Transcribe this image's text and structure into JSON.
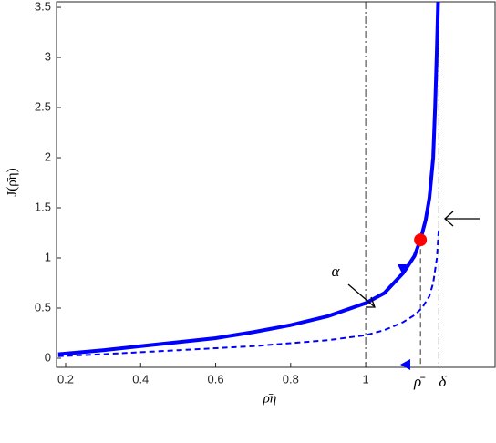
{
  "chart_data": {
    "type": "line",
    "xlabel": "ρ̄η",
    "ylabel": "J(ρ̄η)",
    "xlim": [
      0.1757,
      1.345
    ],
    "ylim": [
      -0.091,
      3.555
    ],
    "xticks": [
      0.2,
      0.4,
      0.6,
      0.8,
      1
    ],
    "yticks": [
      0,
      0.5,
      1,
      1.5,
      2,
      2.5,
      3,
      3.5
    ],
    "series": [
      {
        "color": "#0000ff",
        "style": "solid",
        "x": [
          0.18,
          0.3,
          0.4,
          0.5,
          0.6,
          0.7,
          0.8,
          0.9,
          1.0,
          1.05,
          1.1,
          1.13,
          1.146,
          1.16,
          1.17,
          1.18,
          1.185,
          1.19,
          1.193
        ],
        "values": [
          0.04,
          0.08,
          0.12,
          0.16,
          0.2,
          0.26,
          0.33,
          0.42,
          0.55,
          0.65,
          0.85,
          1.02,
          1.18,
          1.38,
          1.6,
          2.0,
          2.5,
          3.1,
          3.555
        ]
      },
      {
        "color": "#0000ff",
        "style": "dashed",
        "x": [
          0.18,
          0.3,
          0.4,
          0.5,
          0.6,
          0.7,
          0.8,
          0.9,
          1.0,
          1.05,
          1.1,
          1.13,
          1.15,
          1.17,
          1.18,
          1.19,
          1.195
        ],
        "values": [
          0.02,
          0.04,
          0.06,
          0.08,
          0.1,
          0.12,
          0.15,
          0.18,
          0.23,
          0.28,
          0.36,
          0.43,
          0.5,
          0.62,
          0.75,
          1.0,
          1.3
        ]
      }
    ],
    "highlight": {
      "x": 1.146,
      "y": 1.18,
      "color": "#ff0000"
    },
    "reference_lines": [
      {
        "x": 1,
        "style": "dash-dot"
      },
      {
        "x": 1.146,
        "style": "dashed",
        "label": "ρ̄"
      },
      {
        "x": 1.195,
        "style": "dash-dot",
        "label": "δ"
      }
    ],
    "annotation": "α"
  }
}
